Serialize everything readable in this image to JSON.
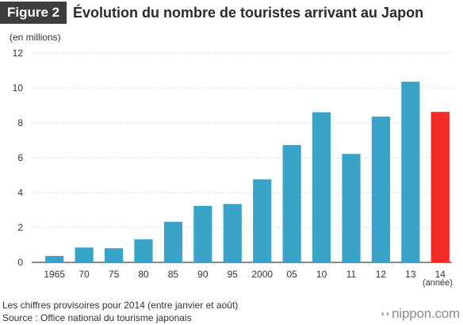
{
  "header": {
    "badge": "Figure 2",
    "title": "Évolution du nombre de touristes arrivant au Japon"
  },
  "chart_data": {
    "type": "bar",
    "title": "Évolution du nombre de touristes arrivant au Japon",
    "ylabel": "(en millions)",
    "xlabel": "(année)",
    "categories": [
      "1965",
      "70",
      "75",
      "80",
      "85",
      "90",
      "95",
      "2000",
      "05",
      "10",
      "11",
      "12",
      "13",
      "14"
    ],
    "values": [
      0.37,
      0.85,
      0.81,
      1.32,
      2.33,
      3.24,
      3.35,
      4.76,
      6.73,
      8.61,
      6.22,
      8.36,
      10.36,
      8.63
    ],
    "ylim": [
      0,
      12
    ],
    "yticks": [
      0,
      2,
      4,
      6,
      8,
      10,
      12
    ],
    "grid": true,
    "colors": {
      "default": "#3aa3c8",
      "highlight": "#f22b2b",
      "highlight_category": "14"
    }
  },
  "footer": {
    "note": "Les chiffres provisoires pour 2014 (entre janvier et août)",
    "source": "Source : Office national du tourisme japonais",
    "brand": "nippon.com"
  }
}
